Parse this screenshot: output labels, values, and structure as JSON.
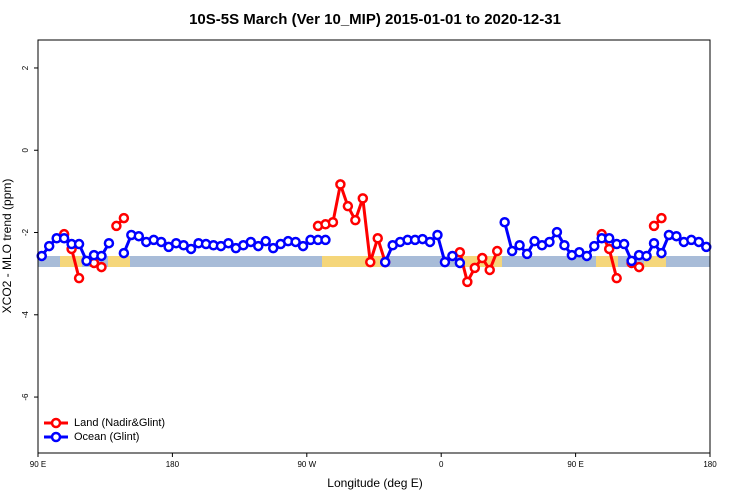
{
  "chart_data": {
    "type": "line",
    "title": "10S-5S March (Ver 10_MIP)   2015-01-01 to 2020-12-31",
    "x_label": "Longitude (deg E)",
    "y_label": "XCO2 - MLO trend (ppm)",
    "xlim": [
      90,
      540
    ],
    "ylim": [
      -7.36,
      2.68
    ],
    "xticks": [
      {
        "value": 90,
        "label": "90 E"
      },
      180,
      {
        "value": 270,
        "label": "90 W"
      },
      {
        "value": 360,
        "label": "0"
      },
      {
        "value": 450,
        "label": "90 E"
      },
      {
        "value": 540,
        "label": "180"
      }
    ],
    "yticks": [
      2,
      0,
      -2,
      -4,
      -6
    ],
    "legend": "bottomleft",
    "series": [
      {
        "name": "Land (Nadir&Glint)",
        "color": "#ff0000",
        "x": [
          107.5,
          112.5,
          117.5,
          null,
          127.5,
          132.5,
          null,
          142.5,
          147.5,
          null,
          277.5,
          282.5,
          287.5,
          292.5,
          297.5,
          302.5,
          307.5,
          312.5,
          317.5,
          322.5,
          null,
          372.5,
          377.5,
          382.5,
          387.5,
          392.5,
          397.5,
          null,
          467.5,
          472.5,
          477.5,
          null,
          487.5,
          492.5,
          null,
          502.5,
          507.5
        ],
        "values": [
          -2.04,
          -2.4,
          -3.11,
          null,
          -2.74,
          -2.84,
          null,
          -1.84,
          -1.65,
          null,
          -1.84,
          -1.8,
          -1.75,
          -0.83,
          -1.36,
          -1.7,
          -1.17,
          -2.72,
          -2.14,
          -2.72,
          null,
          -2.48,
          -3.2,
          -2.86,
          -2.62,
          -2.91,
          -2.45,
          null,
          -2.04,
          -2.4,
          -3.11,
          null,
          -2.74,
          -2.84,
          null,
          -1.84,
          -1.65
        ]
      },
      {
        "name": "Ocean (Glint)",
        "color": "#0000ff",
        "x": [
          92.5,
          97.5,
          102.5,
          107.5,
          112.5,
          117.5,
          122.5,
          127.5,
          132.5,
          137.5,
          null,
          147.5,
          152.5,
          157.5,
          162.5,
          167.5,
          172.5,
          177.5,
          182.5,
          187.5,
          192.5,
          197.5,
          202.5,
          207.5,
          212.5,
          217.5,
          222.5,
          227.5,
          232.5,
          237.5,
          242.5,
          247.5,
          252.5,
          257.5,
          262.5,
          267.5,
          272.5,
          277.5,
          282.5,
          null,
          322.5,
          327.5,
          332.5,
          337.5,
          342.5,
          347.5,
          352.5,
          357.5,
          362.5,
          367.5,
          372.5,
          null,
          402.5,
          407.5,
          412.5,
          417.5,
          422.5,
          427.5,
          432.5,
          437.5,
          442.5,
          447.5,
          452.5,
          457.5,
          462.5,
          467.5,
          472.5,
          477.5,
          482.5,
          487.5,
          492.5,
          497.5,
          502.5,
          507.5,
          512.5,
          517.5,
          522.5,
          527.5,
          532.5,
          537.5
        ],
        "values": [
          -2.57,
          -2.33,
          -2.14,
          -2.14,
          -2.28,
          -2.28,
          -2.69,
          -2.55,
          -2.57,
          -2.26,
          null,
          -2.5,
          -2.06,
          -2.09,
          -2.23,
          -2.18,
          -2.23,
          -2.35,
          -2.26,
          -2.31,
          -2.4,
          -2.26,
          -2.28,
          -2.31,
          -2.33,
          -2.26,
          -2.38,
          -2.31,
          -2.23,
          -2.33,
          -2.21,
          -2.38,
          -2.28,
          -2.21,
          -2.23,
          -2.33,
          -2.18,
          -2.18,
          -2.18,
          null,
          -2.72,
          -2.31,
          -2.23,
          -2.18,
          -2.18,
          -2.16,
          -2.23,
          -2.06,
          -2.72,
          -2.57,
          -2.74,
          null,
          -1.75,
          -2.45,
          -2.31,
          -2.52,
          -2.21,
          -2.31,
          -2.23,
          -1.99,
          -2.31,
          -2.55,
          -2.48,
          -2.57,
          -2.33,
          -2.14,
          -2.14,
          -2.28,
          -2.28,
          -2.69,
          -2.55,
          -2.57,
          -2.26,
          -2.5,
          -2.06,
          -2.09,
          -2.23,
          -2.18,
          -2.23,
          -2.35
        ]
      }
    ]
  }
}
